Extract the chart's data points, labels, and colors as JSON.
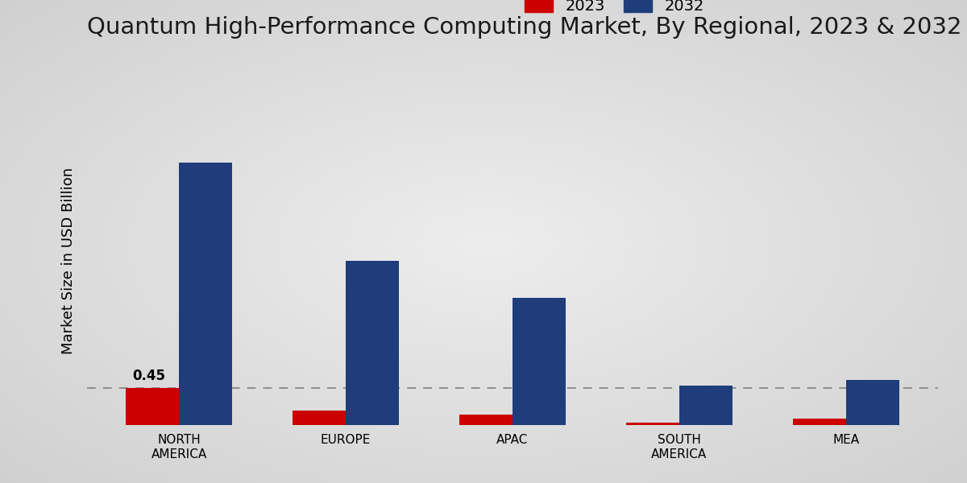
{
  "title": "Quantum High-Performance Computing Market, By Regional, 2023 & 2032",
  "ylabel": "Market Size in USD Billion",
  "categories": [
    "NORTH\nAMERICA",
    "EUROPE",
    "APAC",
    "SOUTH\nAMERICA",
    "MEA"
  ],
  "values_2023": [
    0.45,
    0.18,
    0.13,
    0.03,
    0.08
  ],
  "values_2032": [
    3.2,
    2.0,
    1.55,
    0.48,
    0.55
  ],
  "color_2023": "#cc0000",
  "color_2032": "#1f3d7a",
  "annotation_text": "0.45",
  "annotation_region_index": 0,
  "bar_width": 0.32,
  "ylim": [
    0,
    4.0
  ],
  "legend_labels": [
    "2023",
    "2032"
  ],
  "title_fontsize": 21,
  "ylabel_fontsize": 13,
  "tick_fontsize": 11,
  "legend_fontsize": 14,
  "bottom_bar_color": "#cc0000",
  "bottom_bar_height": 12,
  "dashed_line_y": 0.45,
  "dashed_line_color": "#888888"
}
